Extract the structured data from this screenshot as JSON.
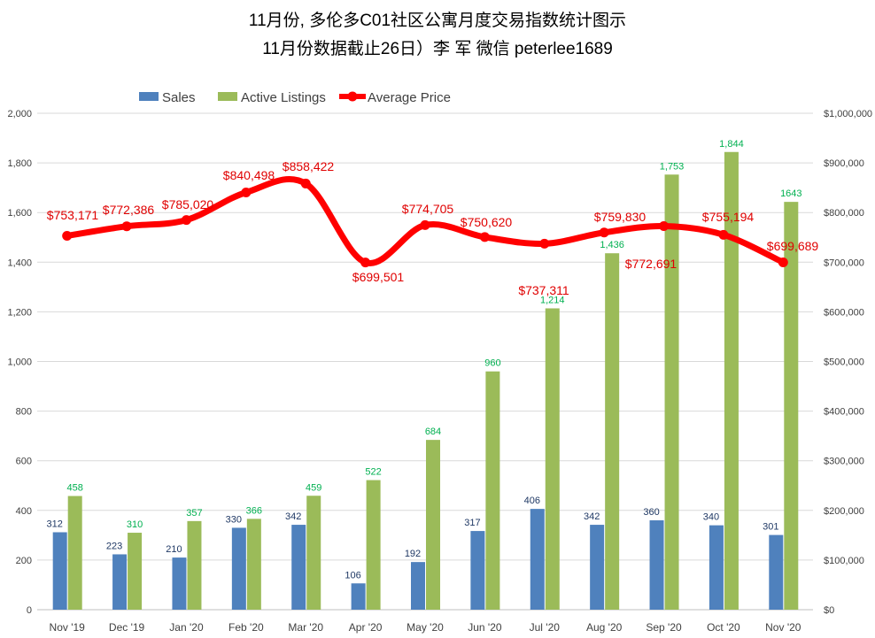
{
  "chart_data": {
    "type": "bar+line",
    "title": [
      "11月份, 多伦多C01社区公寓月度交易指数统计图示",
      "11月份数据截止26日）李 军  微信  peterlee1689"
    ],
    "categories": [
      "Nov '19",
      "Dec '19",
      "Jan '20",
      "Feb '20",
      "Mar '20",
      "Apr '20",
      "May '20",
      "Jun '20",
      "Jul '20",
      "Aug '20",
      "Sep '20",
      "Oct '20",
      "Nov '20"
    ],
    "series": [
      {
        "name": "Sales",
        "type": "bar",
        "axis": "left",
        "color": "#4f81bd",
        "label_color": "#1f3864",
        "values": [
          312,
          223,
          210,
          330,
          342,
          106,
          192,
          317,
          406,
          342,
          360,
          340,
          301
        ],
        "labels": [
          "312",
          "223",
          "210",
          "330",
          "342",
          "106",
          "192",
          "317",
          "406",
          "342",
          "360",
          "340",
          "301"
        ]
      },
      {
        "name": "Active Listings",
        "type": "bar",
        "axis": "left",
        "color": "#9bbb59",
        "label_color": "#00b050",
        "values": [
          458,
          310,
          357,
          366,
          459,
          522,
          684,
          960,
          1214,
          1436,
          1753,
          1844,
          1643
        ],
        "labels": [
          "458",
          "310",
          "357",
          "366",
          "459",
          "522",
          "684",
          "960",
          "1,214",
          "1,436",
          "1,753",
          "1,844",
          "1643"
        ]
      },
      {
        "name": "Average Price",
        "type": "line",
        "axis": "right",
        "color": "#ff0000",
        "label_color": "#e00000",
        "values": [
          753171,
          772386,
          785020,
          840498,
          858422,
          699501,
          774705,
          750620,
          737311,
          759830,
          772691,
          755194,
          699689
        ],
        "labels": [
          "$753,171",
          "$772,386",
          "$785,020",
          "$840,498",
          "$858,422",
          "$699,501",
          "$774,705",
          "$750,620",
          "$737,311",
          "$759,830",
          "$772,691",
          "$755,194",
          "$699,689"
        ]
      }
    ],
    "y_left": {
      "range": [
        0,
        2000
      ],
      "ticks": [
        "0",
        "200",
        "400",
        "600",
        "800",
        "1,000",
        "1,200",
        "1,400",
        "1,600",
        "1,800",
        "2,000"
      ]
    },
    "y_right": {
      "range": [
        0,
        1000000
      ],
      "ticks": [
        "$0",
        "$100,000",
        "$200,000",
        "$300,000",
        "$400,000",
        "$500,000",
        "$600,000",
        "$700,000",
        "$800,000",
        "$900,000",
        "$1,000,000"
      ]
    },
    "grid": true,
    "legend": "top"
  }
}
